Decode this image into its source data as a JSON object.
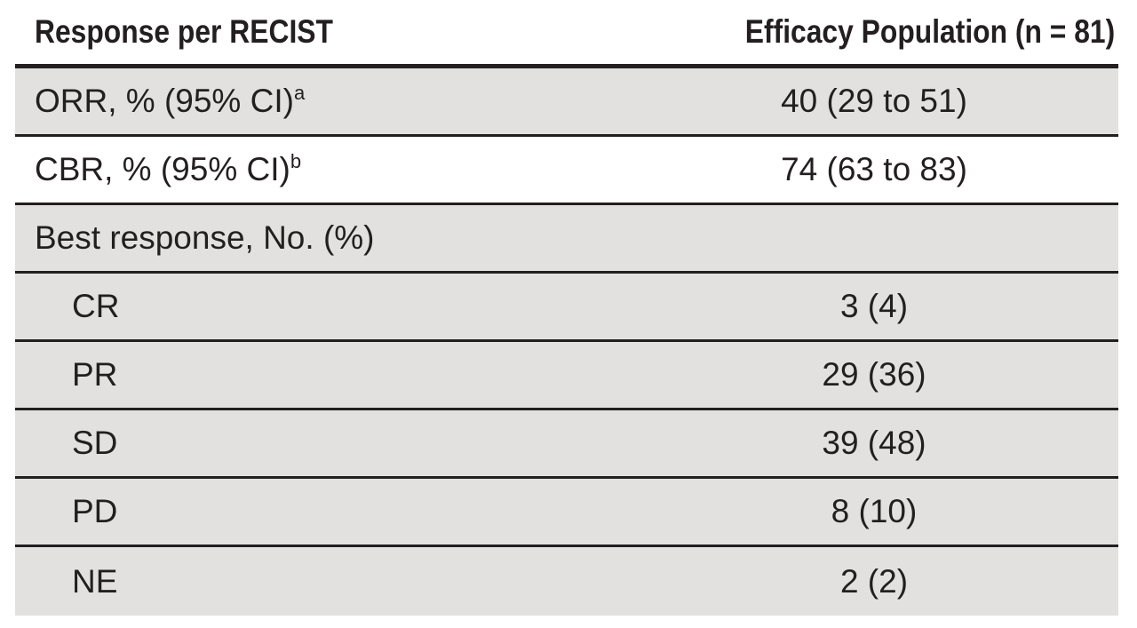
{
  "table": {
    "header": {
      "col1": "Response per RECIST",
      "col2": "Efficacy Population (n = 81)"
    },
    "rows": [
      {
        "label": "ORR, % (95% CI)",
        "sup": "a",
        "value": "40 (29 to 51)"
      },
      {
        "label": "CBR, % (95% CI)",
        "sup": "b",
        "value": "74 (63 to 83)"
      },
      {
        "label": "Best response, No. (%)",
        "sup": "",
        "value": ""
      },
      {
        "label": "CR",
        "sup": "",
        "value": "3 (4)"
      },
      {
        "label": "PR",
        "sup": "",
        "value": "29 (36)"
      },
      {
        "label": "SD",
        "sup": "",
        "value": "39 (48)"
      },
      {
        "label": "PD",
        "sup": "",
        "value": "8 (10)"
      },
      {
        "label": "NE",
        "sup": "",
        "value": "2 (2)"
      }
    ]
  },
  "colors": {
    "text": "#231f20",
    "shade": "#e2e1e0",
    "rule": "#231f20"
  }
}
